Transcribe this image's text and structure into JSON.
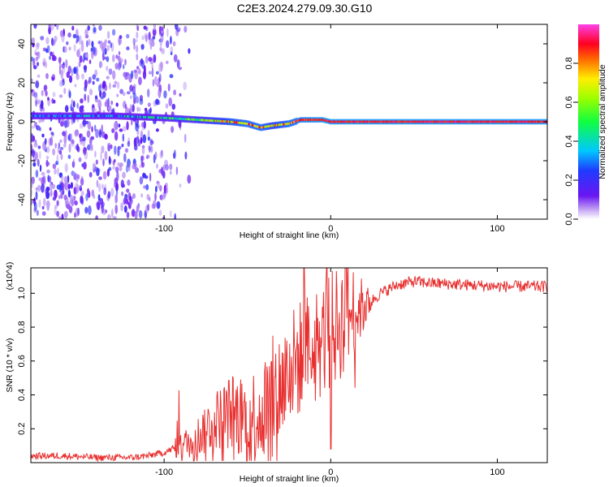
{
  "title": "C2E3.2024.279.09.30.G10",
  "chart_data": [
    {
      "type": "heatmap",
      "xlabel": "Height of straight line (km)",
      "ylabel": "Frequency (Hz)",
      "xlim": [
        -180,
        130
      ],
      "ylim": [
        -50,
        50
      ],
      "xticks": [
        -100,
        0,
        100
      ],
      "yticks": [
        -40,
        -20,
        0,
        20,
        40
      ],
      "colorbar": {
        "label": "Normalized spectral amplitude",
        "range": [
          0,
          1
        ],
        "ticks": [
          0.0,
          0.2,
          0.4,
          0.6,
          0.8
        ],
        "colormap": "rainbow (purple-blue-cyan-green-yellow-red-magenta)"
      },
      "ridge": {
        "x": [
          -180,
          -130,
          -100,
          -80,
          -60,
          -50,
          -42,
          -35,
          -25,
          -18,
          -15,
          -5,
          0,
          20,
          60,
          130
        ],
        "frequency": [
          3,
          3,
          2,
          1,
          0,
          -1,
          -3,
          -2,
          -1,
          1,
          1,
          1,
          0,
          0,
          0,
          0
        ],
        "amplitude": [
          0.25,
          0.3,
          0.4,
          0.55,
          0.75,
          0.8,
          0.8,
          0.7,
          0.8,
          0.85,
          0.85,
          0.9,
          0.9,
          0.9,
          0.9,
          0.9
        ]
      },
      "noise_region": {
        "x": [
          -180,
          -85
        ],
        "amplitude": [
          0.05,
          0.25
        ]
      }
    },
    {
      "type": "line",
      "xlabel": "Height of straight line (km)",
      "ylabel": "SNR (10 * v/v)",
      "y_multiplier": "(x10^4)",
      "xlim": [
        -180,
        130
      ],
      "ylim": [
        0,
        1.15
      ],
      "xticks": [
        -100,
        0,
        100
      ],
      "yticks": [
        0.2,
        0.4,
        0.6,
        0.8,
        1.0
      ],
      "series": [
        {
          "color": "#e83030",
          "x": [
            -180,
            -160,
            -140,
            -120,
            -110,
            -100,
            -90,
            -80,
            -70,
            -60,
            -50,
            -40,
            -35,
            -30,
            -25,
            -20,
            -15,
            -10,
            -5,
            0,
            5,
            10,
            15,
            20,
            25,
            30,
            40,
            50,
            60,
            80,
            100,
            130
          ],
          "values": [
            0.04,
            0.04,
            0.03,
            0.03,
            0.04,
            0.06,
            0.1,
            0.15,
            0.25,
            0.3,
            0.25,
            0.32,
            0.4,
            0.45,
            0.55,
            0.6,
            0.65,
            0.7,
            0.72,
            0.78,
            0.82,
            0.88,
            0.9,
            0.92,
            0.96,
            1.0,
            1.05,
            1.07,
            1.06,
            1.05,
            1.04,
            1.04
          ]
        }
      ]
    }
  ]
}
